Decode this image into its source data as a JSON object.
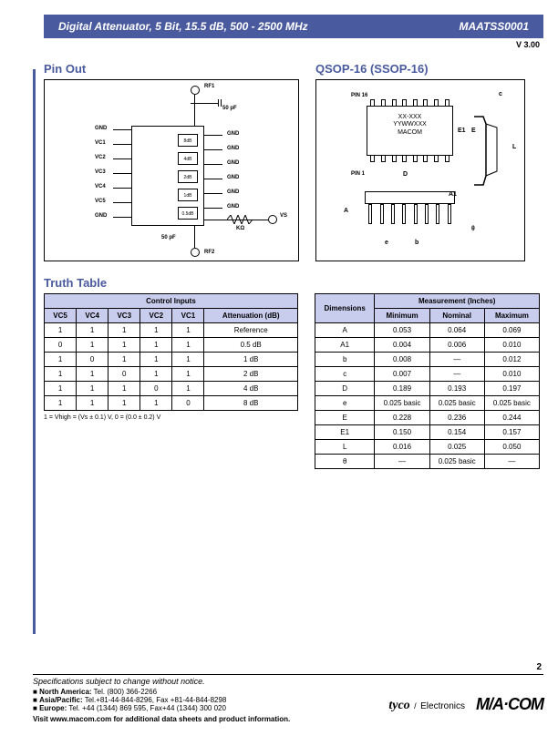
{
  "header": {
    "title": "Digital Attenuator, 5 Bit, 15.5 dB, 500 - 2500 MHz",
    "part": "MAATSS0001",
    "version": "V 3.00"
  },
  "sections": {
    "pinout": "Pin Out",
    "qsop": "QSOP-16 (SSOP-16)",
    "truth": "Truth Table"
  },
  "pinout": {
    "rf1": "RF1",
    "rf2": "RF2",
    "vs": "VS",
    "cap": "50 pF",
    "res": "KΩ",
    "left_labels": [
      "GND",
      "VC1",
      "VC2",
      "VC3",
      "VC4",
      "VC5",
      "GND"
    ],
    "right_labels": [
      "GND",
      "GND",
      "GND",
      "GND",
      "GND",
      "GND"
    ],
    "atten": [
      "8dB",
      "4dB",
      "2dB",
      "1dB",
      "0.5dB"
    ]
  },
  "qsop": {
    "pin16": "PIN 16",
    "pin1": "PIN 1",
    "body_line1": "XX-XXX",
    "body_line2": "YYWWXXX",
    "body_line3": "MACOM",
    "dims": {
      "A": "A",
      "A1": "A1",
      "b": "b",
      "c": "c",
      "D": "D",
      "e": "e",
      "E": "E",
      "E1": "E1",
      "L": "L",
      "theta": "θ"
    }
  },
  "truth_table": {
    "header_group": "Control Inputs",
    "cols": [
      "VC5",
      "VC4",
      "VC3",
      "VC2",
      "VC1",
      "Attenuation (dB)"
    ],
    "rows": [
      [
        "1",
        "1",
        "1",
        "1",
        "1",
        "Reference"
      ],
      [
        "0",
        "1",
        "1",
        "1",
        "1",
        "0.5 dB"
      ],
      [
        "1",
        "0",
        "1",
        "1",
        "1",
        "1 dB"
      ],
      [
        "1",
        "1",
        "0",
        "1",
        "1",
        "2 dB"
      ],
      [
        "1",
        "1",
        "1",
        "0",
        "1",
        "4 dB"
      ],
      [
        "1",
        "1",
        "1",
        "1",
        "0",
        "8 dB"
      ]
    ],
    "note": "1 = Vhigh = (Vs ± 0.1) V, 0 = (0.0 ± 0.2) V"
  },
  "dim_table": {
    "h1": "Dimensions",
    "h2": "Measurement (Inches)",
    "cols": [
      "Minimum",
      "Nominal",
      "Maximum"
    ],
    "rows": [
      [
        "A",
        "0.053",
        "0.064",
        "0.069"
      ],
      [
        "A1",
        "0.004",
        "0.006",
        "0.010"
      ],
      [
        "b",
        "0.008",
        "—",
        "0.012"
      ],
      [
        "c",
        "0.007",
        "—",
        "0.010"
      ],
      [
        "D",
        "0.189",
        "0.193",
        "0.197"
      ],
      [
        "e",
        "0.025 basic",
        "0.025 basic",
        "0.025 basic"
      ],
      [
        "E",
        "0.228",
        "0.236",
        "0.244"
      ],
      [
        "E1",
        "0.150",
        "0.154",
        "0.157"
      ],
      [
        "L",
        "0.016",
        "0.025",
        "0.050"
      ],
      [
        "θ",
        "—",
        "0.025 basic",
        "—"
      ]
    ]
  },
  "footer": {
    "notice": "Specifications subject to change without notice.",
    "na_label": "North America:",
    "na_val": "Tel. (800) 366-2266",
    "ap_label": "Asia/Pacific:",
    "ap_val": "Tel.+81-44-844-8296, Fax +81-44-844-8298",
    "eu_label": "Europe:",
    "eu_val": "Tel. +44 (1344) 869 595, Fax+44 (1344) 300 020",
    "visit": "Visit www.macom.com for additional data sheets and product information.",
    "page": "2",
    "tyco": "tyco",
    "elec": "Electronics",
    "macom": "M/A·COM"
  }
}
